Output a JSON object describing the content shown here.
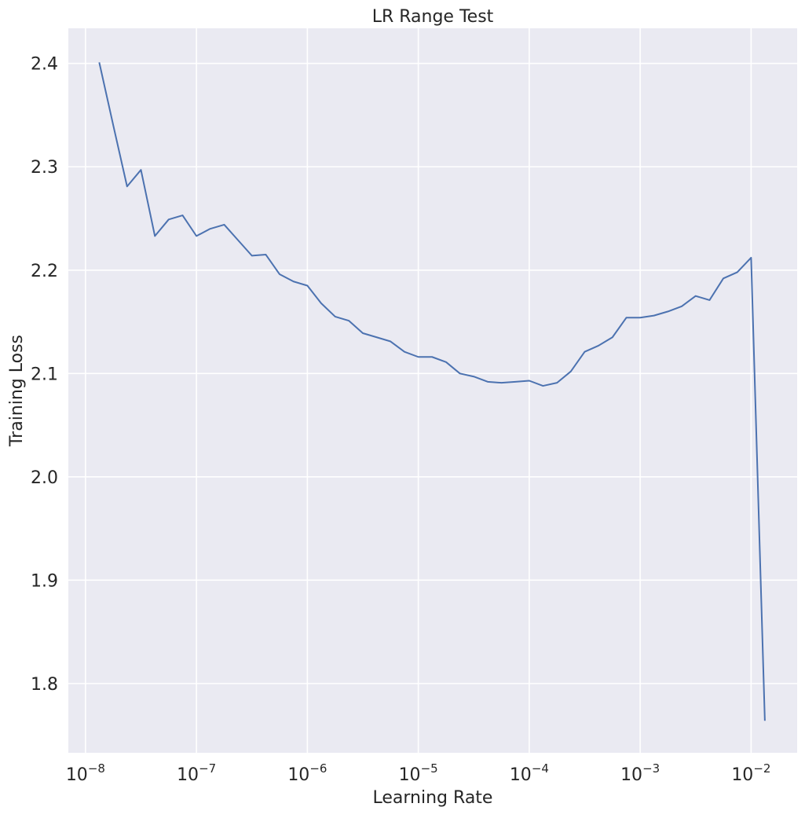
{
  "chart_data": {
    "type": "line",
    "title": "LR Range Test",
    "xlabel": "Learning Rate",
    "ylabel": "Training Loss",
    "xscale": "log",
    "xlim": [
      7e-09,
      0.026
    ],
    "ylim": [
      1.733,
      2.434
    ],
    "grid": true,
    "xticks": [
      {
        "exp": -8,
        "value": 1e-08
      },
      {
        "exp": -7,
        "value": 1e-07
      },
      {
        "exp": -6,
        "value": 1e-06
      },
      {
        "exp": -5,
        "value": 1e-05
      },
      {
        "exp": -4,
        "value": 0.0001
      },
      {
        "exp": -3,
        "value": 0.001
      },
      {
        "exp": -2,
        "value": 0.01
      }
    ],
    "yticks": [
      "1.8",
      "1.9",
      "2.0",
      "2.1",
      "2.2",
      "2.3",
      "2.4"
    ],
    "series": [
      {
        "color": "#4c72b0",
        "x": [
          1.33e-08,
          1.78e-08,
          2.37e-08,
          3.16e-08,
          4.22e-08,
          5.62e-08,
          7.5e-08,
          1e-07,
          1.33e-07,
          1.78e-07,
          2.37e-07,
          3.16e-07,
          4.22e-07,
          5.62e-07,
          7.5e-07,
          1e-06,
          1.33e-06,
          1.78e-06,
          2.37e-06,
          3.16e-06,
          4.22e-06,
          5.62e-06,
          7.5e-06,
          1e-05,
          1.33e-05,
          1.78e-05,
          2.37e-05,
          3.16e-05,
          4.22e-05,
          5.62e-05,
          7.5e-05,
          0.0001,
          0.000133,
          0.000178,
          0.000237,
          0.000316,
          0.000422,
          0.000562,
          0.00075,
          0.001,
          0.00133,
          0.00178,
          0.00237,
          0.00316,
          0.00422,
          0.00562,
          0.0075,
          0.01,
          0.0133
        ],
        "y": [
          2.401,
          2.34,
          2.281,
          2.297,
          2.233,
          2.249,
          2.253,
          2.233,
          2.24,
          2.244,
          2.229,
          2.214,
          2.215,
          2.196,
          2.189,
          2.185,
          2.168,
          2.155,
          2.151,
          2.139,
          2.135,
          2.131,
          2.121,
          2.116,
          2.116,
          2.111,
          2.1,
          2.097,
          2.092,
          2.091,
          2.092,
          2.093,
          2.088,
          2.091,
          2.102,
          2.121,
          2.127,
          2.135,
          2.154,
          2.154,
          2.156,
          2.16,
          2.165,
          2.175,
          2.171,
          2.192,
          2.198,
          2.212,
          1.764
        ]
      }
    ]
  }
}
